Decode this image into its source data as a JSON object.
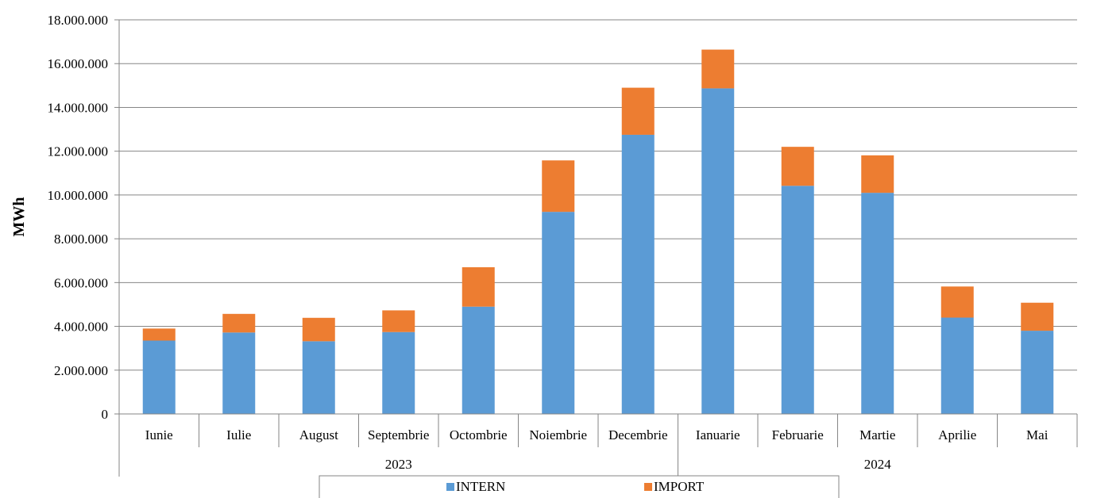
{
  "chart_data": {
    "type": "bar",
    "stacked": true,
    "title": "",
    "xlabel": "",
    "ylabel": "MWh",
    "ylim": [
      0,
      18000000
    ],
    "y_ticks": [
      "0",
      "2.000.000",
      "4.000.000",
      "6.000.000",
      "8.000.000",
      "10.000.000",
      "12.000.000",
      "14.000.000",
      "16.000.000",
      "18.000.000"
    ],
    "y_tick_values": [
      0,
      2000000,
      4000000,
      6000000,
      8000000,
      10000000,
      12000000,
      14000000,
      16000000,
      18000000
    ],
    "grid": "horizontal",
    "categories": [
      "Iunie",
      "Iulie",
      "August",
      "Septembrie",
      "Octombrie",
      "Noiembrie",
      "Decembrie",
      "Ianuarie",
      "Februarie",
      "Martie",
      "Aprilie",
      "Mai"
    ],
    "year_groups": [
      {
        "label": "2023",
        "count": 7
      },
      {
        "label": "2024",
        "count": 5
      }
    ],
    "series": [
      {
        "name": "INTERN",
        "color": "#5B9BD5",
        "values": [
          3350000,
          3720000,
          3320000,
          3740000,
          4900000,
          9230000,
          12750000,
          14870000,
          10420000,
          10100000,
          4400000,
          3800000
        ]
      },
      {
        "name": "IMPORT",
        "color": "#ED7D31",
        "values": [
          550000,
          850000,
          1070000,
          990000,
          1800000,
          2350000,
          2150000,
          1770000,
          1780000,
          1710000,
          1420000,
          1280000
        ]
      }
    ],
    "legend_position": "bottom"
  }
}
